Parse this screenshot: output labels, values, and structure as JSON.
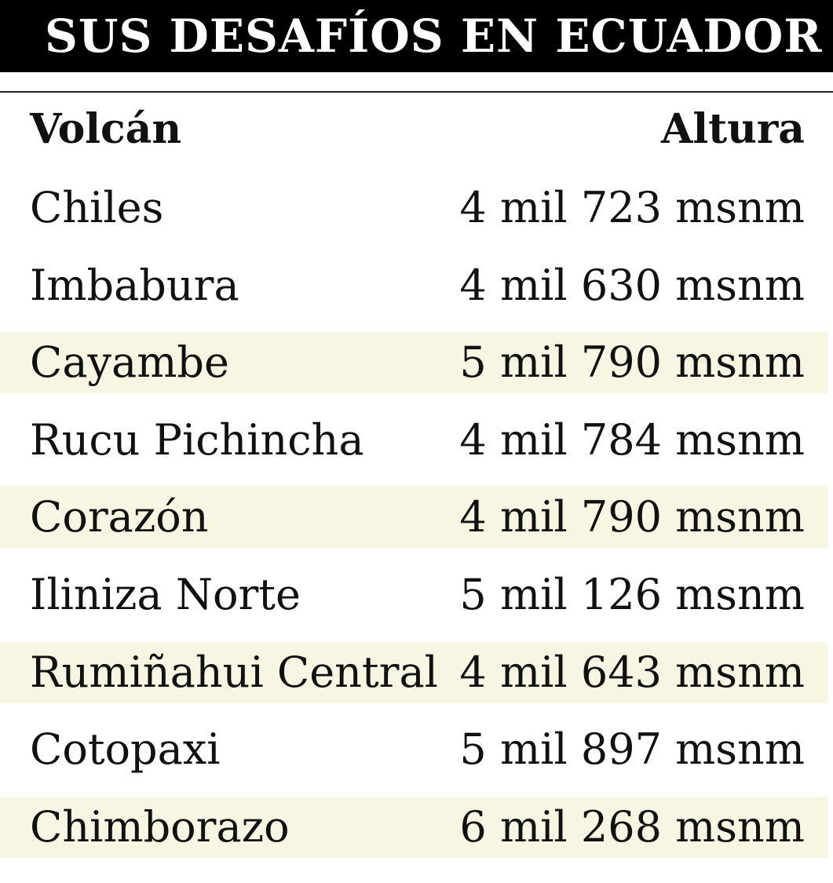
{
  "header": {
    "title": "SUS DESAFÍOS EN ECUADOR"
  },
  "table": {
    "columns": [
      "Volcán",
      "Altura"
    ],
    "rows": [
      [
        "Chiles",
        "4 mil 723 msnm"
      ],
      [
        "Imbabura",
        "4 mil 630 msnm"
      ],
      [
        "Cayambe",
        "5 mil 790 msnm"
      ],
      [
        "Rucu Pichincha",
        "4 mil 784 msnm"
      ],
      [
        "Corazón",
        "4 mil 790 msnm"
      ],
      [
        "Iliniza Norte",
        "5 mil 126 msnm"
      ],
      [
        "Rumiñahui Central",
        "4 mil 643 msnm"
      ],
      [
        "Cotopaxi",
        "5 mil 897 msnm"
      ],
      [
        "Chimborazo",
        "6 mil 268 msnm"
      ]
    ]
  }
}
